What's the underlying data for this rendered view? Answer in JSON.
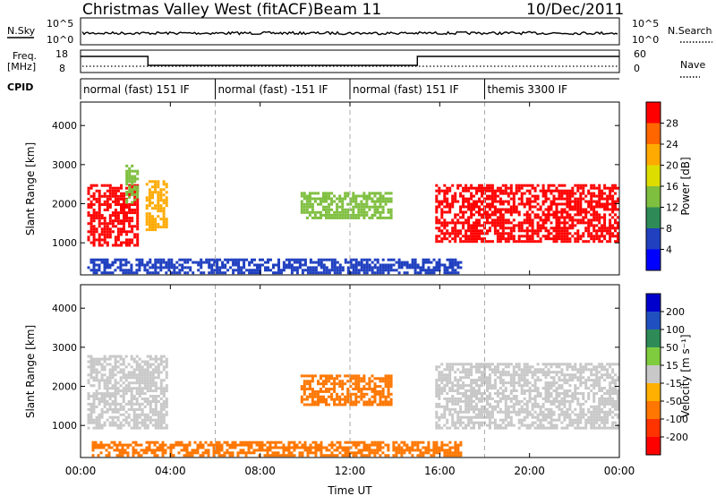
{
  "header": {
    "title": "Christmas Valley West (fitACF)",
    "beam": "Beam 11",
    "date": "10/Dec/2011"
  },
  "nsky_panel": {
    "left_label": "N.Sky",
    "left_ticks": [
      "10^5",
      "10^0"
    ],
    "right_label": "N.Search",
    "right_ticks": [
      "10^5",
      "10^0"
    ]
  },
  "freq_panel": {
    "left_label_top": "Freq.",
    "left_label_bottom": "[MHz]",
    "left_ticks": [
      "18",
      "8"
    ],
    "right_label": "Nave",
    "right_ticks": [
      "60",
      "0"
    ],
    "freq_steps": [
      {
        "start_hour": 0.0,
        "end_hour": 3.0,
        "value": "high"
      },
      {
        "start_hour": 3.0,
        "end_hour": 15.0,
        "value": "low"
      },
      {
        "start_hour": 15.0,
        "end_hour": 24.0,
        "value": "high"
      }
    ]
  },
  "cpid": {
    "label": "CPID",
    "segments": [
      {
        "text": "normal (fast) 151 IF",
        "start_hour": 0,
        "end_hour": 6
      },
      {
        "text": "normal (fast) -151 IF",
        "start_hour": 6,
        "end_hour": 12
      },
      {
        "text": "normal (fast) 151 IF",
        "start_hour": 12,
        "end_hour": 18
      },
      {
        "text": "themis 3300 IF",
        "start_hour": 18,
        "end_hour": 24
      }
    ]
  },
  "colorbars": {
    "power": {
      "label": "Power [dB]",
      "ticks": [
        "28",
        "24",
        "20",
        "16",
        "12",
        "8",
        "4"
      ],
      "colors": [
        "#ff0000",
        "#ff6600",
        "#ffaa00",
        "#dddd00",
        "#7fbf3f",
        "#2e8b57",
        "#2040c0",
        "#0000ff"
      ]
    },
    "velocity": {
      "label": "Velocity [m s⁻¹]",
      "ticks": [
        "200",
        "100",
        "50",
        "15",
        "-15",
        "-50",
        "-100",
        "-200"
      ],
      "colors": [
        "#0000cc",
        "#2050c0",
        "#2e8b57",
        "#7fcc3f",
        "#c8c8c8",
        "#ffb000",
        "#ff7700",
        "#ff3300",
        "#ff0000"
      ]
    }
  },
  "axes": {
    "ylabel": "Slant Range [km]",
    "xlabel": "Time UT",
    "x_ticks": [
      "00:00",
      "04:00",
      "08:00",
      "12:00",
      "16:00",
      "20:00",
      "00:00"
    ],
    "y_ticks": [
      "1000",
      "2000",
      "3000",
      "4000"
    ]
  },
  "chart_data": [
    {
      "type": "heatmap",
      "name": "power",
      "xlabel": "Time UT",
      "ylabel": "Slant Range [km]",
      "xlim": [
        0,
        24
      ],
      "ylim": [
        180,
        4600
      ],
      "colorbar_label": "Power [dB]",
      "regions": [
        {
          "t0": 0.3,
          "t1": 2.6,
          "r0": 900,
          "r1": 2500,
          "value": "28"
        },
        {
          "t0": 2.0,
          "t1": 2.6,
          "r0": 2000,
          "r1": 3000,
          "value": "16"
        },
        {
          "t0": 2.9,
          "t1": 3.9,
          "r0": 1300,
          "r1": 2600,
          "value": "24"
        },
        {
          "t0": 9.8,
          "t1": 13.9,
          "r0": 1600,
          "r1": 2300,
          "value": "16"
        },
        {
          "t0": 15.8,
          "t1": 24.0,
          "r0": 1000,
          "r1": 2500,
          "value": "28"
        },
        {
          "t0": 0.3,
          "t1": 17.0,
          "r0": 200,
          "r1": 600,
          "value": "8"
        }
      ]
    },
    {
      "type": "heatmap",
      "name": "velocity",
      "xlabel": "Time UT",
      "ylabel": "Slant Range [km]",
      "xlim": [
        0,
        24
      ],
      "ylim": [
        180,
        4600
      ],
      "colorbar_label": "Velocity [m s⁻¹]",
      "regions": [
        {
          "t0": 0.3,
          "t1": 3.9,
          "r0": 900,
          "r1": 2800,
          "value": "15"
        },
        {
          "t0": 9.8,
          "t1": 13.9,
          "r0": 1500,
          "r1": 2300,
          "value": "-50"
        },
        {
          "t0": 15.8,
          "t1": 24.0,
          "r0": 900,
          "r1": 2600,
          "value": "15"
        },
        {
          "t0": 0.5,
          "t1": 17.0,
          "r0": 200,
          "r1": 600,
          "value": "-50"
        }
      ]
    }
  ]
}
